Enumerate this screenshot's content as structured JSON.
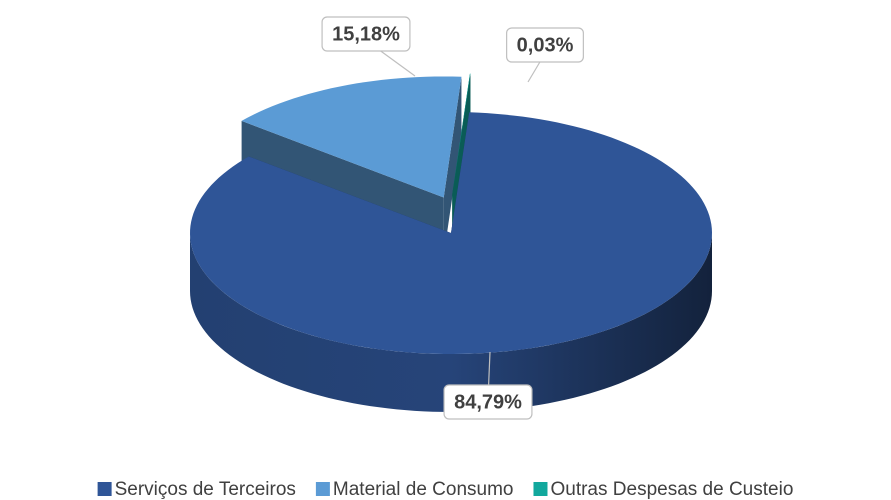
{
  "chart_data": {
    "type": "pie",
    "categories": [
      "Serviços de Terceiros",
      "Material de Consumo",
      "Outras Despesas de Custeio"
    ],
    "values": [
      84.79,
      15.18,
      0.03
    ],
    "value_labels": [
      "84,79%",
      "15,18%",
      "0,03%"
    ],
    "colors": [
      "#2f5597",
      "#5b9bd5",
      "#12a89d"
    ],
    "exploded": [
      false,
      true,
      true
    ],
    "three_d": true,
    "legend": "bottom"
  }
}
